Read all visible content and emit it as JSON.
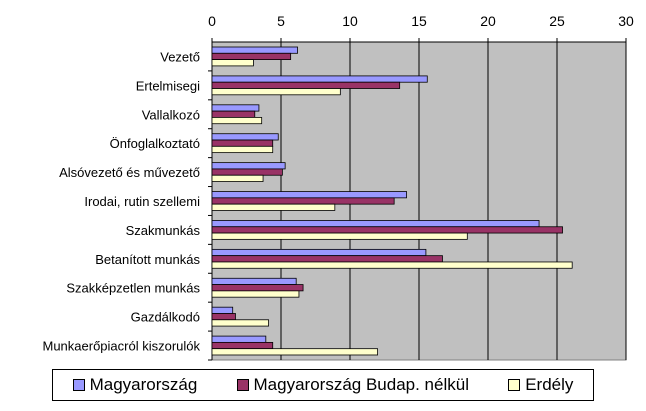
{
  "chart_data": {
    "type": "bar",
    "orientation": "horizontal",
    "title": "",
    "xlim": [
      0,
      30
    ],
    "ticks": [
      "0",
      "5",
      "10",
      "15",
      "20",
      "25",
      "30"
    ],
    "grid": true,
    "legend_position": "bottom",
    "categories": [
      "Vezető",
      "Ertelmisegi",
      "Vallalkozó",
      "Önfoglalkoztató",
      "Alsóvezető  és művezető",
      "Irodai, rutin szellemi",
      "Szakmunkás",
      "Betanított munkás",
      "Szakképzetlen munkás",
      "Gazdálkodó",
      "Munkaerőpiacról kiszorulók"
    ],
    "series": [
      {
        "name": "Magyarország",
        "color": "#9999ff",
        "values": [
          6.2,
          15.6,
          3.4,
          4.8,
          5.3,
          14.1,
          23.7,
          15.5,
          6.1,
          1.5,
          3.9
        ]
      },
      {
        "name": "Magyarország Budap. nélkül",
        "color": "#993366",
        "values": [
          5.7,
          13.6,
          3.1,
          4.4,
          5.1,
          13.2,
          25.4,
          16.7,
          6.6,
          1.7,
          4.4
        ]
      },
      {
        "name": "Erdély",
        "color": "#ffffcc",
        "values": [
          3.0,
          9.3,
          3.6,
          4.4,
          3.7,
          8.9,
          18.5,
          26.1,
          6.3,
          4.1,
          12.0
        ]
      }
    ]
  }
}
